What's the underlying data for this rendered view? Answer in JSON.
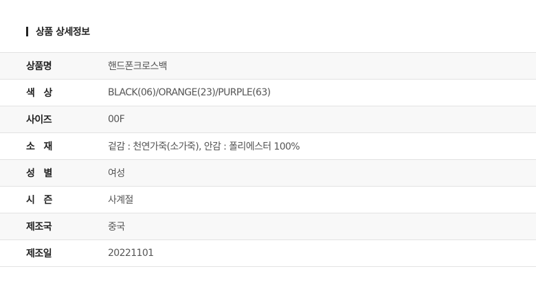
{
  "section_title": "상품 상세정보",
  "rows": [
    {
      "label": "상품명",
      "value": "핸드폰크로스백"
    },
    {
      "label": "색   상",
      "value": "BLACK(06)/ORANGE(23)/PURPLE(63)"
    },
    {
      "label": "사이즈",
      "value": "00F"
    },
    {
      "label": "소   재",
      "value": "겉감 : 천연가죽(소가죽), 안감 : 폴리에스터 100%"
    },
    {
      "label": "성   별",
      "value": "여성"
    },
    {
      "label": "시   즌",
      "value": "사계절"
    },
    {
      "label": "제조국",
      "value": "중국"
    },
    {
      "label": "제조일",
      "value": "20221101"
    }
  ]
}
